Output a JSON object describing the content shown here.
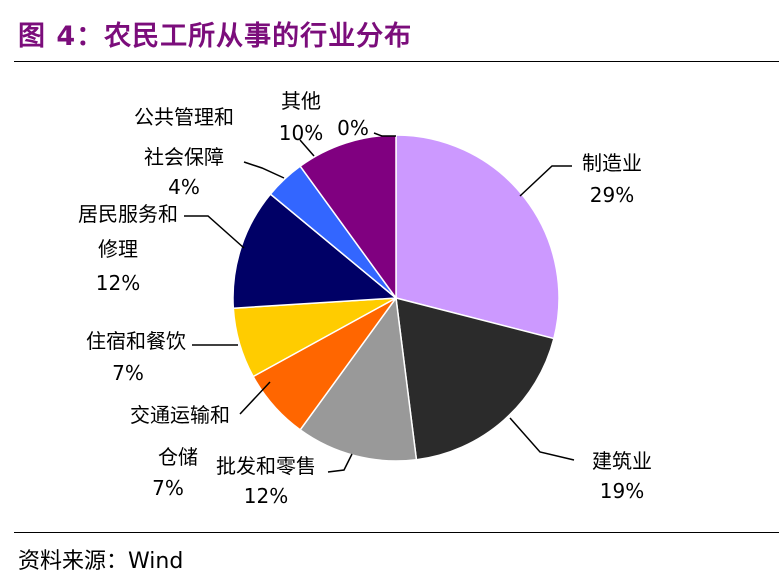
{
  "title": "图 4：农民工所从事的行业分布",
  "source": "资料来源：Wind",
  "chart_data": {
    "type": "pie",
    "title": "图 4：农民工所从事的行业分布",
    "start_angle_deg": 0,
    "direction": "clockwise",
    "slices": [
      {
        "label": "制造业",
        "value": 29,
        "value_label": "29%",
        "color": "#cc99ff"
      },
      {
        "label": "建筑业",
        "value": 19,
        "value_label": "19%",
        "color": "#2b2b2b"
      },
      {
        "label": "批发和零售",
        "value": 12,
        "value_label": "12%",
        "color": "#999999"
      },
      {
        "label": "交通运输和仓储",
        "value": 7,
        "value_label": "7%",
        "color": "#ff6600"
      },
      {
        "label": "住宿和餐饮",
        "value": 7,
        "value_label": "7%",
        "color": "#ffcc00"
      },
      {
        "label": "居民服务和修理",
        "value": 12,
        "value_label": "12%",
        "color": "#000066"
      },
      {
        "label": "公共管理和社会保障",
        "value": 4,
        "value_label": "4%",
        "color": "#3366ff"
      },
      {
        "label": "其他",
        "value": 10,
        "value_label": "10%",
        "color": "#800080"
      },
      {
        "label": "",
        "value": 0,
        "value_label": "0%",
        "color": "#800080"
      }
    ]
  }
}
